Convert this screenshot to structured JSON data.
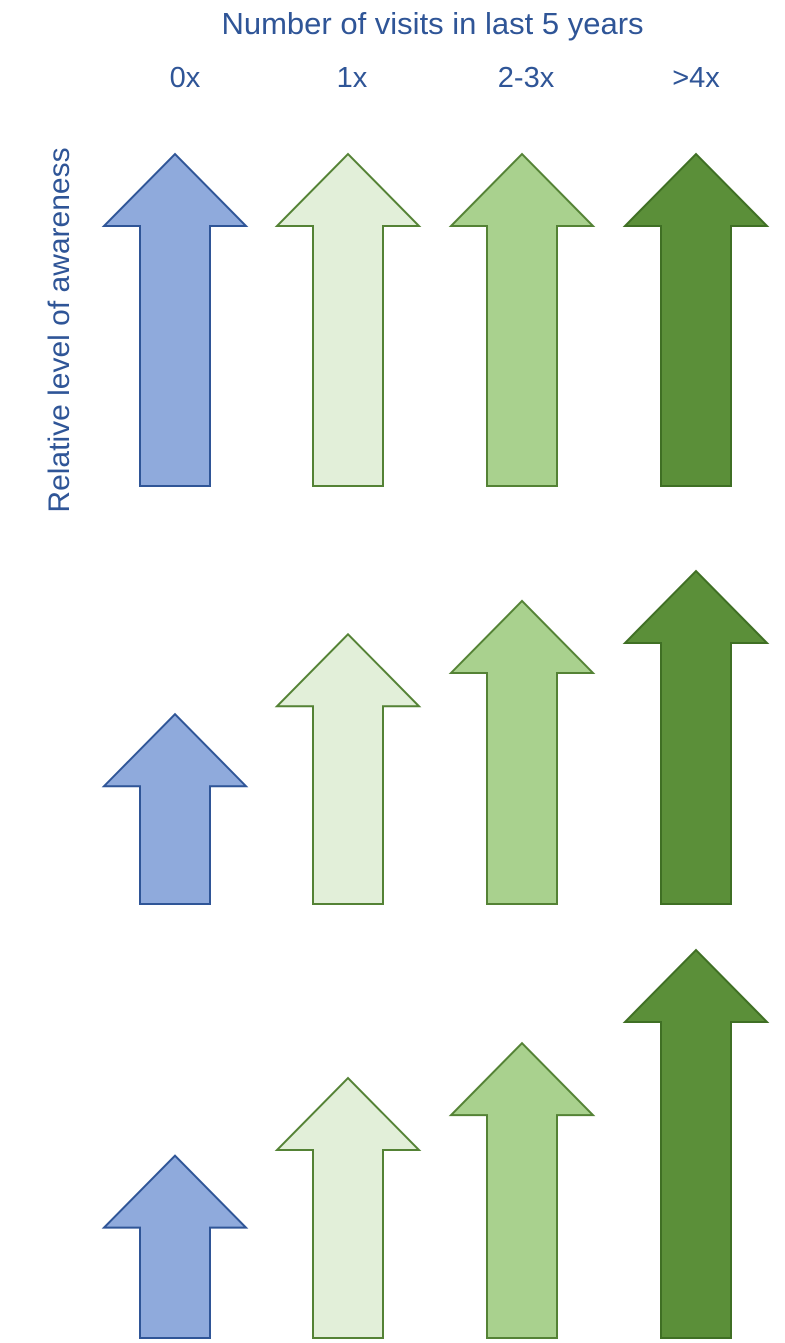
{
  "diagram": {
    "title": "Number of visits in last 5 years",
    "y_label": "Relative level of awareness",
    "columns": [
      {
        "label": "0x",
        "fill": "#8faadc",
        "stroke": "#2f5597"
      },
      {
        "label": "1x",
        "fill": "#e2efd9",
        "stroke": "#548235"
      },
      {
        "label": "2-3x",
        "fill": "#a9d18e",
        "stroke": "#548235"
      },
      {
        "label": ">4x",
        "fill": "#5b8f39",
        "stroke": "#3f6f24"
      }
    ],
    "panels": [
      {
        "levels": [
          1.0,
          1.0,
          1.0,
          1.0
        ]
      },
      {
        "levels": [
          0.57,
          0.81,
          0.91,
          1.0
        ]
      },
      {
        "levels": [
          0.47,
          0.67,
          0.76,
          1.0
        ]
      }
    ]
  }
}
